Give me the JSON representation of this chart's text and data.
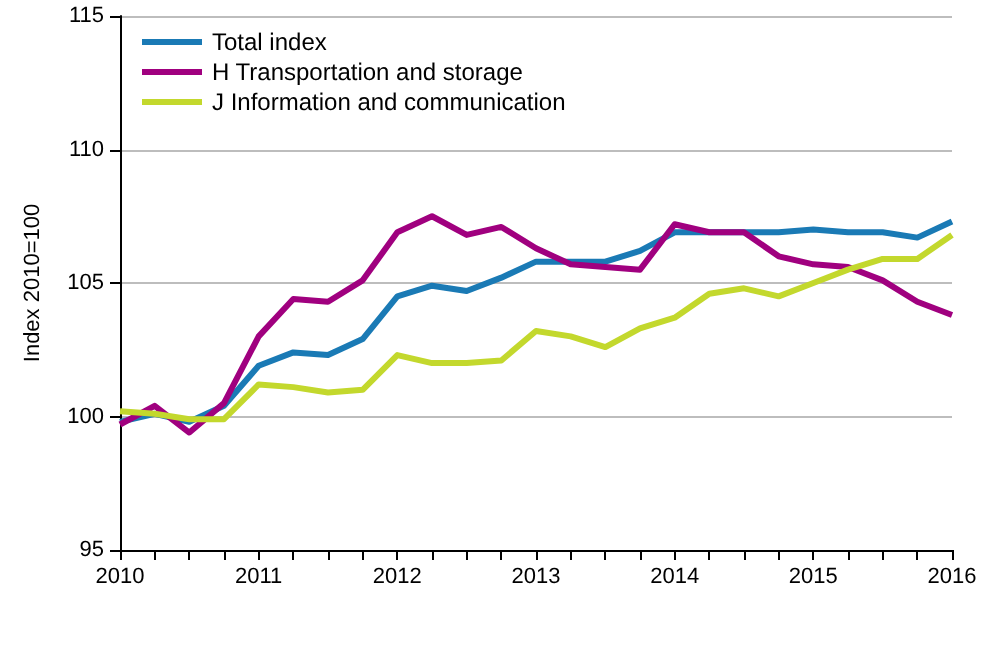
{
  "chart_data": {
    "type": "line",
    "ylabel": "Index 2010=100",
    "categories": [
      "2010",
      null,
      null,
      null,
      "2011",
      null,
      null,
      null,
      "2012",
      null,
      null,
      null,
      "2013",
      null,
      null,
      null,
      "2014",
      null,
      null,
      null,
      "2015",
      null,
      null,
      null,
      "2016"
    ],
    "series": [
      {
        "name": "Total index",
        "color": "#1a7ab5",
        "values": [
          99.8,
          100.1,
          99.8,
          100.4,
          101.9,
          102.4,
          102.3,
          102.9,
          104.5,
          104.9,
          104.7,
          105.2,
          105.8,
          105.8,
          105.8,
          106.2,
          106.9,
          106.9,
          106.9,
          106.9,
          107.0,
          106.9,
          106.9,
          106.7,
          107.3
        ]
      },
      {
        "name": "H Transportation and storage",
        "color": "#a0007f",
        "values": [
          99.7,
          100.4,
          99.4,
          100.5,
          103.0,
          104.4,
          104.3,
          105.1,
          106.9,
          107.5,
          106.8,
          107.1,
          106.3,
          105.7,
          105.6,
          105.5,
          107.2,
          106.9,
          106.9,
          106.0,
          105.7,
          105.6,
          105.1,
          104.3,
          103.8
        ]
      },
      {
        "name": "J Information and communication",
        "color": "#c3d82d",
        "values": [
          100.2,
          100.1,
          99.9,
          99.9,
          101.2,
          101.1,
          100.9,
          101.0,
          102.3,
          102.0,
          102.0,
          102.1,
          103.2,
          103.0,
          102.6,
          103.3,
          103.7,
          104.6,
          104.8,
          104.5,
          105.0,
          105.5,
          105.9,
          105.9,
          106.8
        ]
      }
    ],
    "ylim": [
      95,
      115
    ],
    "yticks": [
      95,
      100,
      105,
      110,
      115
    ],
    "grid": "y",
    "legend": "top left",
    "marker": "none",
    "line_style": "solid"
  }
}
